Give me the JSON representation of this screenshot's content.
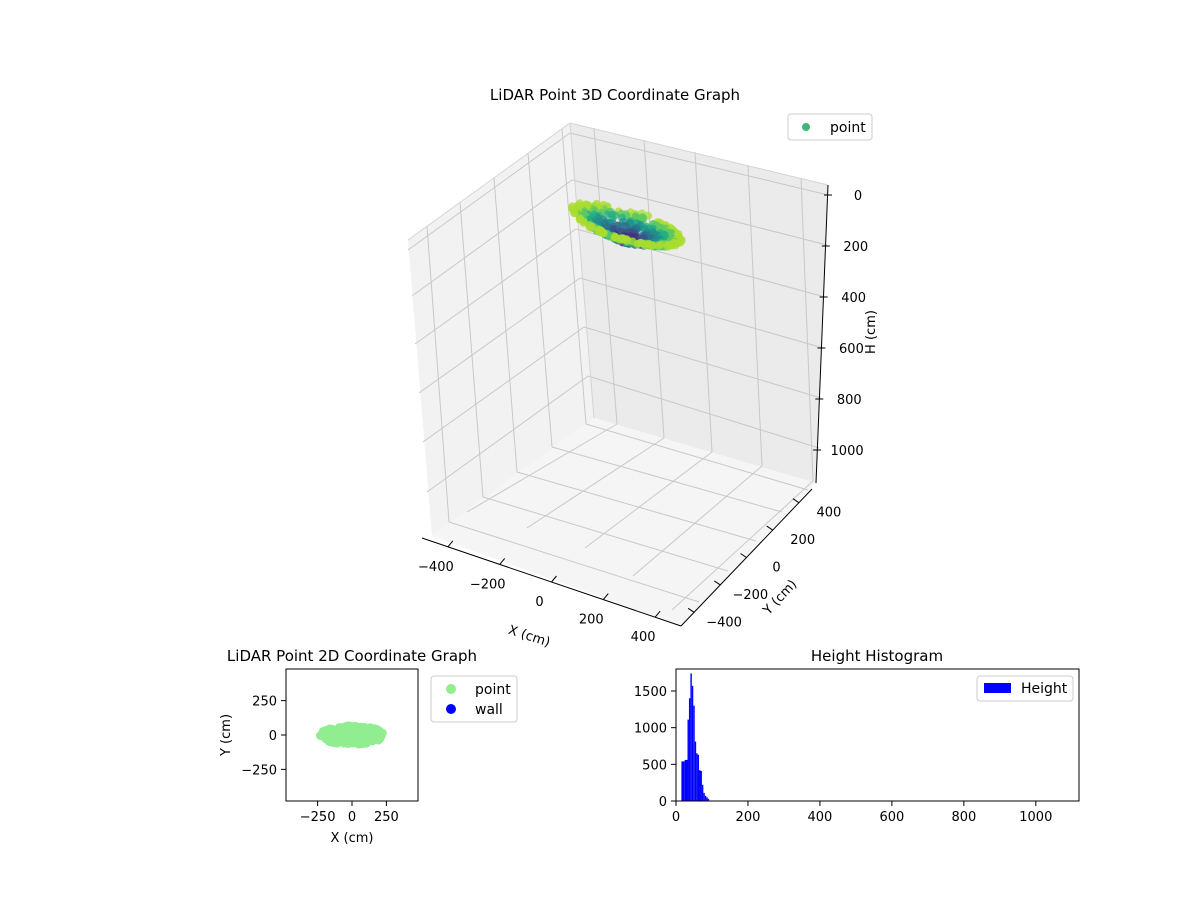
{
  "chart_data": [
    {
      "type": "scatter",
      "projection": "3d",
      "title": "LiDAR Point 3D Coordinate Graph",
      "xlabel": "X (cm)",
      "ylabel": "Y (cm)",
      "zlabel": "H (cm)",
      "xlim": [
        -500,
        500
      ],
      "ylim": [
        -500,
        500
      ],
      "zlim": [
        0,
        1100
      ],
      "z_inverted": true,
      "xticks": [
        "−400",
        "−200",
        "0",
        "200",
        "400"
      ],
      "yticks": [
        "−400",
        "−200",
        "0",
        "200",
        "400"
      ],
      "zticks": [
        "0",
        "200",
        "400",
        "600",
        "800",
        "1000"
      ],
      "grid": true,
      "legend": {
        "placement": "top-right",
        "entries": [
          "point"
        ]
      },
      "colormap": "viridis",
      "legend_color": "#3cb878",
      "series": [
        {
          "name": "point",
          "description_range": {
            "x": [
              -230,
              230
            ],
            "y": [
              -90,
              90
            ],
            "h": [
              20,
              90
            ]
          }
        }
      ]
    },
    {
      "type": "scatter",
      "title": "LiDAR Point 2D Coordinate Graph",
      "xlabel": "X (cm)",
      "ylabel": "Y (cm)",
      "xlim": [
        -480,
        480
      ],
      "ylim": [
        -480,
        480
      ],
      "xticks": [
        "−250",
        "0",
        "250"
      ],
      "yticks": [
        "250",
        "0",
        "−250"
      ],
      "legend": {
        "placement": "outside-right",
        "entries": [
          "point",
          "wall"
        ]
      },
      "series": [
        {
          "name": "point",
          "color": "#90ee90",
          "extent": {
            "x": [
              -250,
              250
            ],
            "y": [
              -75,
              75
            ]
          }
        },
        {
          "name": "wall",
          "color": "#0000ff",
          "points": []
        }
      ]
    },
    {
      "type": "bar",
      "subtype": "histogram",
      "title": "Height Histogram",
      "xlim": [
        0,
        1120
      ],
      "ylim": [
        0,
        1800
      ],
      "xticks": [
        "0",
        "200",
        "400",
        "600",
        "800",
        "1000"
      ],
      "yticks": [
        "0",
        "500",
        "1000",
        "1500"
      ],
      "legend": {
        "placement": "top-right",
        "entries": [
          "Height"
        ]
      },
      "color": "#0000ff",
      "series": [
        {
          "name": "Height",
          "bin_edges": [
            15,
            24,
            32,
            36,
            40,
            44,
            48,
            52,
            56,
            60,
            64,
            68,
            72,
            76,
            80,
            84,
            88,
            92
          ],
          "counts": [
            540,
            560,
            1110,
            1400,
            1740,
            1570,
            1300,
            810,
            650,
            630,
            420,
            410,
            220,
            110,
            70,
            50,
            30
          ]
        }
      ]
    }
  ]
}
